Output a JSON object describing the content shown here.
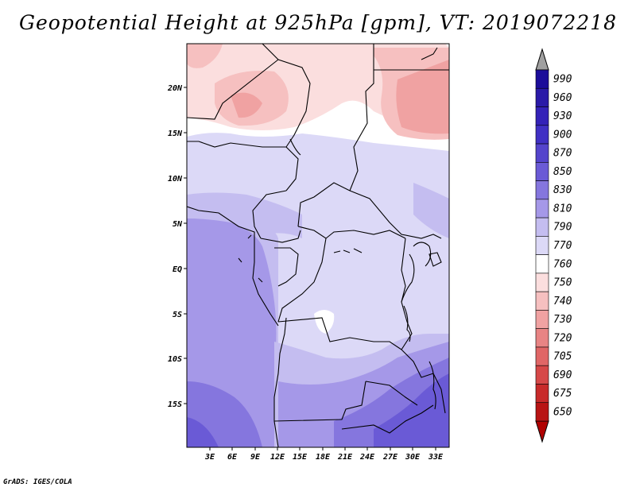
{
  "title": "Geopotential Height at 925hPa [gpm], VT: 2019072218",
  "credit": "GrADS: IGES/COLA",
  "map": {
    "lat_labels": [
      "20N",
      "15N",
      "10N",
      "5N",
      "EQ",
      "5S",
      "10S",
      "15S"
    ],
    "lon_labels": [
      "3E",
      "6E",
      "9E",
      "12E",
      "15E",
      "18E",
      "21E",
      "24E",
      "27E",
      "30E",
      "33E"
    ]
  },
  "colorbar": {
    "levels": [
      "990",
      "960",
      "930",
      "900",
      "870",
      "850",
      "830",
      "810",
      "790",
      "770",
      "760",
      "750",
      "740",
      "730",
      "720",
      "705",
      "690",
      "675",
      "650"
    ],
    "colors": [
      "#1c0d9a",
      "#2a1aa8",
      "#3422b8",
      "#4030c4",
      "#5444cc",
      "#6a5ad6",
      "#8576de",
      "#a598e8",
      "#c4bdf0",
      "#dcd9f7",
      "#ffffff",
      "#fbdede",
      "#f6c0c0",
      "#f0a2a2",
      "#e88484",
      "#e06666",
      "#d64848",
      "#c82a2a",
      "#b81414"
    ],
    "top_arrow_color": "#a0a0a0",
    "bottom_arrow_color": "#b00000"
  }
}
